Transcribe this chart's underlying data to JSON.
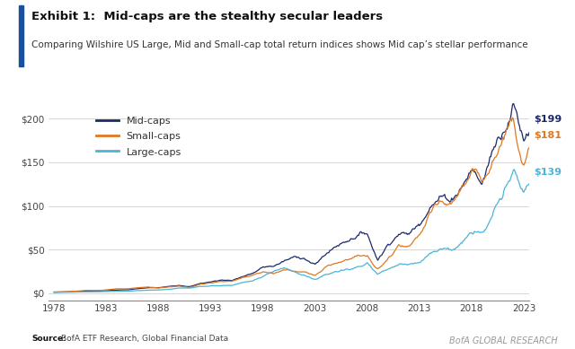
{
  "title_bold": "Exhibit 1:  Mid-caps are the stealthy secular leaders",
  "title_sub": "Comparing Wilshire US Large, Mid and Small-cap total return indices shows Mid cap’s stellar performance",
  "source_bold": "Source:",
  "source_rest": "  BofA ETF Research, Global Financial Data",
  "watermark": "BofA GLOBAL RESEARCH",
  "x_start": 1978,
  "x_end": 2023,
  "x_ticks": [
    1978,
    1983,
    1988,
    1993,
    1998,
    2003,
    2008,
    2013,
    2018,
    2023
  ],
  "y_ticks": [
    0,
    50,
    100,
    150,
    200
  ],
  "y_labels": [
    "$0",
    "$50",
    "$100",
    "$150",
    "$200"
  ],
  "ylim": [
    -8,
    218
  ],
  "end_labels": [
    {
      "label": "$199",
      "color": "#1b2a6b",
      "value": 199
    },
    {
      "label": "$181",
      "color": "#e07820",
      "value": 181
    },
    {
      "label": "$139",
      "color": "#4ab5d8",
      "value": 139
    }
  ],
  "legend": [
    {
      "label": "Mid-caps",
      "color": "#1b2a6b"
    },
    {
      "label": "Small-caps",
      "color": "#e07820"
    },
    {
      "label": "Large-caps",
      "color": "#4ab5d8"
    }
  ],
  "background_color": "#ffffff",
  "plot_bg": "#ffffff",
  "accent_bar_color": "#1a4fa0",
  "grid_color": "#d0d0d0"
}
